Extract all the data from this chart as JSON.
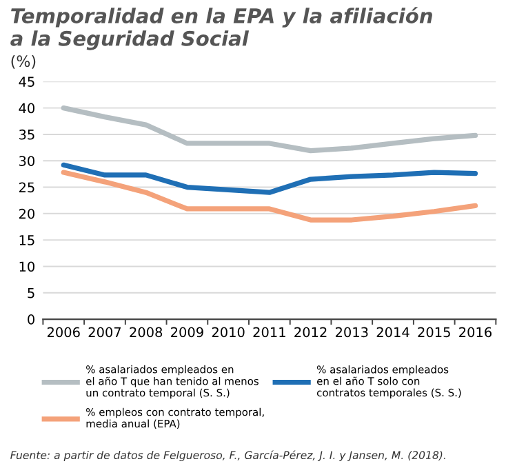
{
  "chart_data": {
    "type": "line",
    "title": "Temporalidad en la EPA y la afiliación\na la Seguridad Social",
    "ylabel": "(%)",
    "categories": [
      "2006",
      "2007",
      "2008",
      "2009",
      "2010",
      "2011",
      "2012",
      "2013",
      "2014",
      "2015",
      "2016"
    ],
    "series": [
      {
        "name": "% asalariados empleados en\nel año T que han tenido al menos\nun contrato temporal (S. S.)",
        "color": "#b5bec2",
        "values": [
          40,
          38.3,
          36.8,
          33.3,
          33.3,
          33.3,
          31.9,
          32.4,
          33.3,
          34.2,
          34.8
        ]
      },
      {
        "name": "% asalariados empleados\nen el año T solo con\ncontratos temporales (S. S.)",
        "color": "#1f6fb5",
        "values": [
          29.2,
          27.3,
          27.3,
          25,
          24.5,
          24,
          26.5,
          27,
          27.3,
          27.8,
          27.6
        ]
      },
      {
        "name": "% empleos con contrato temporal,\nmedia anual (EPA)",
        "color": "#f4a27a",
        "values": [
          27.8,
          26,
          24,
          20.9,
          20.9,
          20.9,
          18.8,
          18.8,
          19.5,
          20.4,
          21.5
        ]
      }
    ],
    "ylim": [
      0,
      45
    ],
    "yticks": [
      0,
      5,
      10,
      15,
      20,
      25,
      30,
      35,
      40,
      45
    ],
    "grid": "y",
    "legend": "bottom",
    "marker": "none",
    "line_style": "solid",
    "annotations": [
      "Fuente: a partir de datos de Felgueroso, F., García-Pérez, J. I. y Jansen, M. (2018)."
    ]
  }
}
